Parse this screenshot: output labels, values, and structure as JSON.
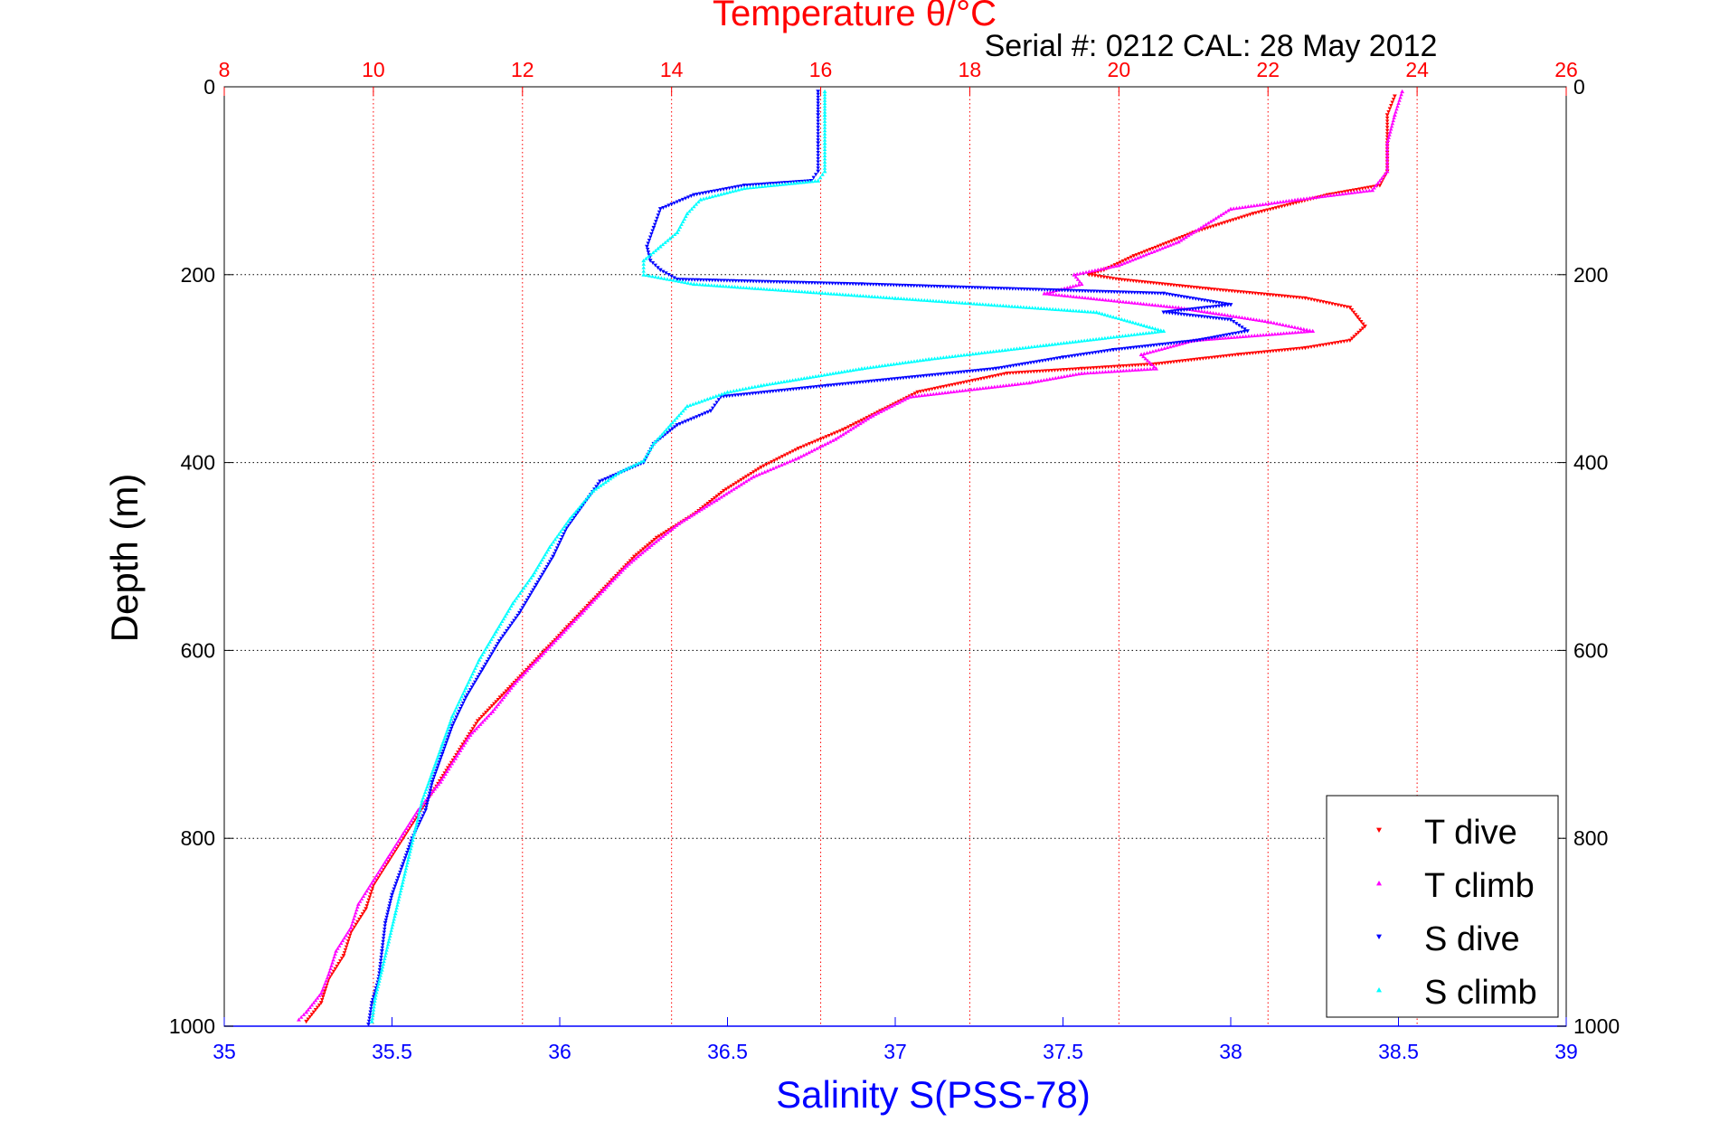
{
  "chart_data": {
    "type": "scatter",
    "title": "Temperature θ/°C",
    "subtitle": "Serial #: 0212  CAL: 28 May 2012",
    "xlabel": "Salinity S(PSS-78)",
    "ylabel": "Depth (m)",
    "x_top_label": "Temperature θ/°C",
    "x_bottom": {
      "label": "Salinity S(PSS-78)",
      "lim": [
        35,
        39
      ],
      "ticks": [
        "35",
        "35.5",
        "36",
        "36.5",
        "37",
        "37.5",
        "38",
        "38.5",
        "39"
      ],
      "color": "#0000ff"
    },
    "x_top": {
      "label": "Temperature θ/°C",
      "lim": [
        8,
        26
      ],
      "ticks": [
        "8",
        "10",
        "12",
        "14",
        "16",
        "18",
        "20",
        "22",
        "24",
        "26"
      ],
      "color": "#ff0000"
    },
    "y": {
      "label": "Depth (m)",
      "lim": [
        0,
        1000
      ],
      "reversed": true,
      "ticks": [
        "0",
        "200",
        "400",
        "600",
        "800",
        "1000"
      ]
    },
    "grid": true,
    "legend_position": "bottom-right",
    "series": [
      {
        "name": "T dive",
        "axis": "temperature",
        "color": "#ff0000",
        "marker": "triangle-down",
        "points": [
          [
            23.7,
            10
          ],
          [
            23.6,
            30
          ],
          [
            23.6,
            60
          ],
          [
            23.6,
            90
          ],
          [
            23.5,
            105
          ],
          [
            22.8,
            115
          ],
          [
            21.8,
            135
          ],
          [
            21.0,
            155
          ],
          [
            20.2,
            180
          ],
          [
            19.8,
            195
          ],
          [
            19.6,
            200
          ],
          [
            20.0,
            205
          ],
          [
            21.2,
            215
          ],
          [
            22.5,
            225
          ],
          [
            23.1,
            235
          ],
          [
            23.2,
            245
          ],
          [
            23.3,
            255
          ],
          [
            23.1,
            270
          ],
          [
            22.5,
            278
          ],
          [
            21.6,
            285
          ],
          [
            20.5,
            295
          ],
          [
            19.5,
            300
          ],
          [
            18.5,
            305
          ],
          [
            17.3,
            325
          ],
          [
            16.8,
            345
          ],
          [
            16.3,
            365
          ],
          [
            15.7,
            385
          ],
          [
            15.2,
            405
          ],
          [
            14.7,
            430
          ],
          [
            14.3,
            455
          ],
          [
            13.8,
            480
          ],
          [
            13.5,
            500
          ],
          [
            13.2,
            525
          ],
          [
            12.9,
            550
          ],
          [
            12.6,
            575
          ],
          [
            12.3,
            600
          ],
          [
            12.0,
            625
          ],
          [
            11.7,
            650
          ],
          [
            11.4,
            675
          ],
          [
            11.2,
            700
          ],
          [
            11.0,
            725
          ],
          [
            10.8,
            750
          ],
          [
            10.6,
            775
          ],
          [
            10.4,
            800
          ],
          [
            10.2,
            825
          ],
          [
            10.0,
            850
          ],
          [
            9.9,
            875
          ],
          [
            9.7,
            900
          ],
          [
            9.6,
            925
          ],
          [
            9.4,
            950
          ],
          [
            9.3,
            975
          ],
          [
            9.1,
            995
          ]
        ]
      },
      {
        "name": "T climb",
        "axis": "temperature",
        "color": "#ff00ff",
        "marker": "triangle-up",
        "points": [
          [
            23.8,
            5
          ],
          [
            23.7,
            30
          ],
          [
            23.6,
            60
          ],
          [
            23.6,
            90
          ],
          [
            23.4,
            110
          ],
          [
            22.4,
            120
          ],
          [
            21.5,
            130
          ],
          [
            20.8,
            165
          ],
          [
            20.0,
            190
          ],
          [
            19.4,
            200
          ],
          [
            19.5,
            210
          ],
          [
            19.0,
            220
          ],
          [
            20.8,
            235
          ],
          [
            22.0,
            250
          ],
          [
            22.6,
            260
          ],
          [
            21.0,
            270
          ],
          [
            20.3,
            285
          ],
          [
            20.5,
            300
          ],
          [
            19.5,
            305
          ],
          [
            18.8,
            315
          ],
          [
            17.2,
            330
          ],
          [
            16.7,
            350
          ],
          [
            16.2,
            375
          ],
          [
            15.7,
            395
          ],
          [
            15.1,
            415
          ],
          [
            14.6,
            440
          ],
          [
            14.1,
            465
          ],
          [
            13.7,
            490
          ],
          [
            13.4,
            510
          ],
          [
            13.1,
            535
          ],
          [
            12.8,
            560
          ],
          [
            12.5,
            585
          ],
          [
            12.2,
            610
          ],
          [
            11.9,
            635
          ],
          [
            11.6,
            665
          ],
          [
            11.3,
            690
          ],
          [
            11.1,
            715
          ],
          [
            10.9,
            740
          ],
          [
            10.6,
            770
          ],
          [
            10.4,
            795
          ],
          [
            10.2,
            820
          ],
          [
            10.0,
            845
          ],
          [
            9.8,
            870
          ],
          [
            9.7,
            895
          ],
          [
            9.5,
            920
          ],
          [
            9.4,
            945
          ],
          [
            9.3,
            965
          ],
          [
            9.1,
            985
          ],
          [
            9.0,
            993
          ]
        ]
      },
      {
        "name": "S dive",
        "axis": "salinity",
        "color": "#0000ff",
        "marker": "triangle-down",
        "points": [
          [
            36.77,
            5
          ],
          [
            36.77,
            30
          ],
          [
            36.77,
            60
          ],
          [
            36.77,
            90
          ],
          [
            36.75,
            100
          ],
          [
            36.55,
            105
          ],
          [
            36.4,
            115
          ],
          [
            36.3,
            130
          ],
          [
            36.28,
            150
          ],
          [
            36.26,
            170
          ],
          [
            36.27,
            185
          ],
          [
            36.3,
            195
          ],
          [
            36.35,
            205
          ],
          [
            36.9,
            210
          ],
          [
            37.8,
            220
          ],
          [
            38.0,
            232
          ],
          [
            37.8,
            240
          ],
          [
            38.0,
            248
          ],
          [
            38.05,
            260
          ],
          [
            37.9,
            270
          ],
          [
            37.65,
            280
          ],
          [
            37.5,
            288
          ],
          [
            37.3,
            300
          ],
          [
            36.8,
            318
          ],
          [
            36.48,
            330
          ],
          [
            36.45,
            345
          ],
          [
            36.35,
            360
          ],
          [
            36.28,
            380
          ],
          [
            36.25,
            400
          ],
          [
            36.12,
            420
          ],
          [
            36.07,
            445
          ],
          [
            36.02,
            470
          ],
          [
            35.98,
            500
          ],
          [
            35.93,
            530
          ],
          [
            35.88,
            560
          ],
          [
            35.82,
            590
          ],
          [
            35.77,
            620
          ],
          [
            35.72,
            650
          ],
          [
            35.68,
            680
          ],
          [
            35.65,
            710
          ],
          [
            35.62,
            740
          ],
          [
            35.6,
            770
          ],
          [
            35.56,
            800
          ],
          [
            35.53,
            830
          ],
          [
            35.5,
            860
          ],
          [
            35.48,
            890
          ],
          [
            35.47,
            920
          ],
          [
            35.46,
            950
          ],
          [
            35.44,
            975
          ],
          [
            35.43,
            998
          ]
        ]
      },
      {
        "name": "S climb",
        "axis": "salinity",
        "color": "#00ffff",
        "marker": "triangle-up",
        "points": [
          [
            36.79,
            5
          ],
          [
            36.79,
            30
          ],
          [
            36.79,
            60
          ],
          [
            36.79,
            90
          ],
          [
            36.77,
            100
          ],
          [
            36.55,
            108
          ],
          [
            36.42,
            120
          ],
          [
            36.38,
            135
          ],
          [
            36.35,
            155
          ],
          [
            36.3,
            170
          ],
          [
            36.25,
            185
          ],
          [
            36.25,
            200
          ],
          [
            36.4,
            210
          ],
          [
            37.0,
            225
          ],
          [
            37.6,
            240
          ],
          [
            37.8,
            260
          ],
          [
            37.45,
            275
          ],
          [
            37.1,
            290
          ],
          [
            36.9,
            300
          ],
          [
            36.6,
            318
          ],
          [
            36.5,
            325
          ],
          [
            36.38,
            340
          ],
          [
            36.33,
            360
          ],
          [
            36.28,
            380
          ],
          [
            36.25,
            398
          ],
          [
            36.18,
            410
          ],
          [
            36.1,
            430
          ],
          [
            36.03,
            460
          ],
          [
            35.97,
            490
          ],
          [
            35.92,
            520
          ],
          [
            35.86,
            550
          ],
          [
            35.81,
            580
          ],
          [
            35.76,
            610
          ],
          [
            35.72,
            640
          ],
          [
            35.68,
            670
          ],
          [
            35.65,
            700
          ],
          [
            35.62,
            730
          ],
          [
            35.59,
            760
          ],
          [
            35.57,
            790
          ],
          [
            35.55,
            820
          ],
          [
            35.53,
            850
          ],
          [
            35.51,
            880
          ],
          [
            35.49,
            910
          ],
          [
            35.47,
            940
          ],
          [
            35.45,
            970
          ],
          [
            35.44,
            995
          ]
        ]
      }
    ]
  }
}
